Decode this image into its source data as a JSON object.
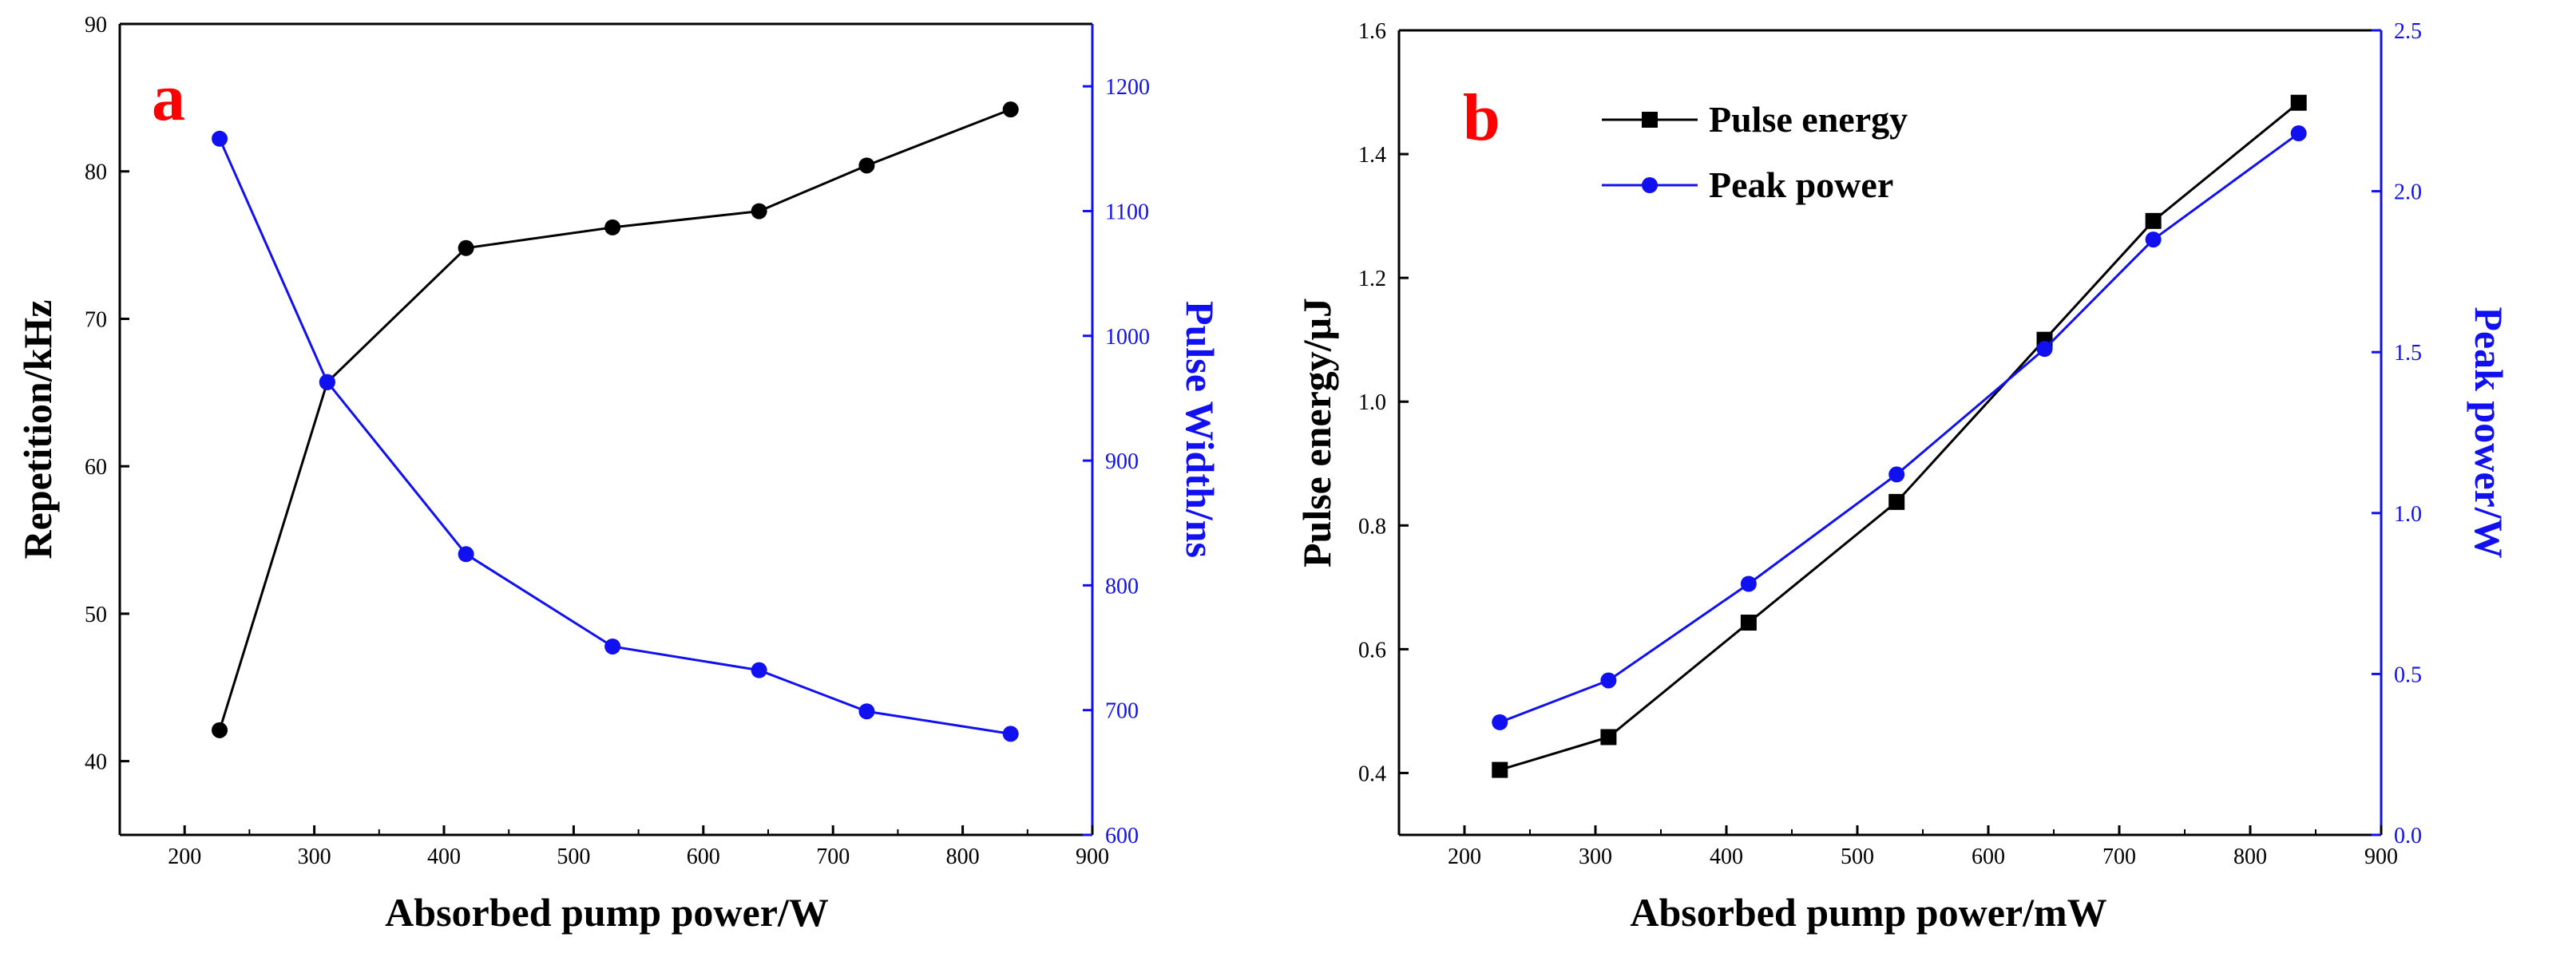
{
  "colors": {
    "black": "#000000",
    "blue": "#1010f0",
    "red": "#ff0000"
  },
  "chart_data": [
    {
      "type": "line",
      "panel_label": "a",
      "xlabel": "Absorbed pump power/W",
      "ylabel_left": "Repetition/kHz",
      "ylabel_right": "Pulse Width/ns",
      "xlim": [
        150,
        900
      ],
      "xticks": [
        200,
        300,
        400,
        500,
        600,
        700,
        800,
        900
      ],
      "ylim_left": [
        35,
        90
      ],
      "yticks_left": [
        40,
        50,
        60,
        70,
        80,
        90
      ],
      "ylim_right": [
        600,
        1250
      ],
      "yticks_right": [
        600,
        700,
        800,
        900,
        1000,
        1100,
        1200
      ],
      "series": [
        {
          "name": "Repetition",
          "axis": "left",
          "color": "black",
          "marker": "circle",
          "x": [
            227,
            310,
            417,
            530,
            643,
            726,
            837
          ],
          "y": [
            42.1,
            65.7,
            74.8,
            76.2,
            77.3,
            80.4,
            84.2
          ]
        },
        {
          "name": "Pulse Width",
          "axis": "right",
          "color": "blue",
          "marker": "circle",
          "x": [
            227,
            310,
            417,
            530,
            643,
            726,
            837
          ],
          "y": [
            1158,
            963,
            825,
            751,
            732,
            699,
            681
          ]
        }
      ]
    },
    {
      "type": "line",
      "panel_label": "b",
      "xlabel": "Absorbed pump power/mW",
      "ylabel_left": "Pulse energy/μJ",
      "ylabel_right": "Peak power/W",
      "xlim": [
        150,
        900
      ],
      "xticks": [
        200,
        300,
        400,
        500,
        600,
        700,
        800,
        900
      ],
      "ylim_left": [
        0.3,
        1.6
      ],
      "yticks_left": [
        "0.4",
        "0.6",
        "0.8",
        "1.0",
        "1.2",
        "1.4",
        "1.6"
      ],
      "ylim_right": [
        0.0,
        2.5
      ],
      "yticks_right": [
        "0.0",
        "0.5",
        "1.0",
        "1.5",
        "2.0",
        "2.5"
      ],
      "legend": [
        "Pulse energy",
        "Peak power"
      ],
      "legend_position": "top-left",
      "series": [
        {
          "name": "Pulse energy",
          "axis": "left",
          "color": "black",
          "marker": "square",
          "x": [
            227,
            310,
            417,
            530,
            643,
            726,
            837
          ],
          "y": [
            0.405,
            0.458,
            0.643,
            0.838,
            1.1,
            1.292,
            1.483
          ]
        },
        {
          "name": "Peak power",
          "axis": "right",
          "color": "blue",
          "marker": "circle",
          "x": [
            227,
            310,
            417,
            530,
            643,
            726,
            837
          ],
          "y": [
            0.35,
            0.48,
            0.78,
            1.12,
            1.51,
            1.85,
            2.18
          ]
        }
      ]
    }
  ]
}
